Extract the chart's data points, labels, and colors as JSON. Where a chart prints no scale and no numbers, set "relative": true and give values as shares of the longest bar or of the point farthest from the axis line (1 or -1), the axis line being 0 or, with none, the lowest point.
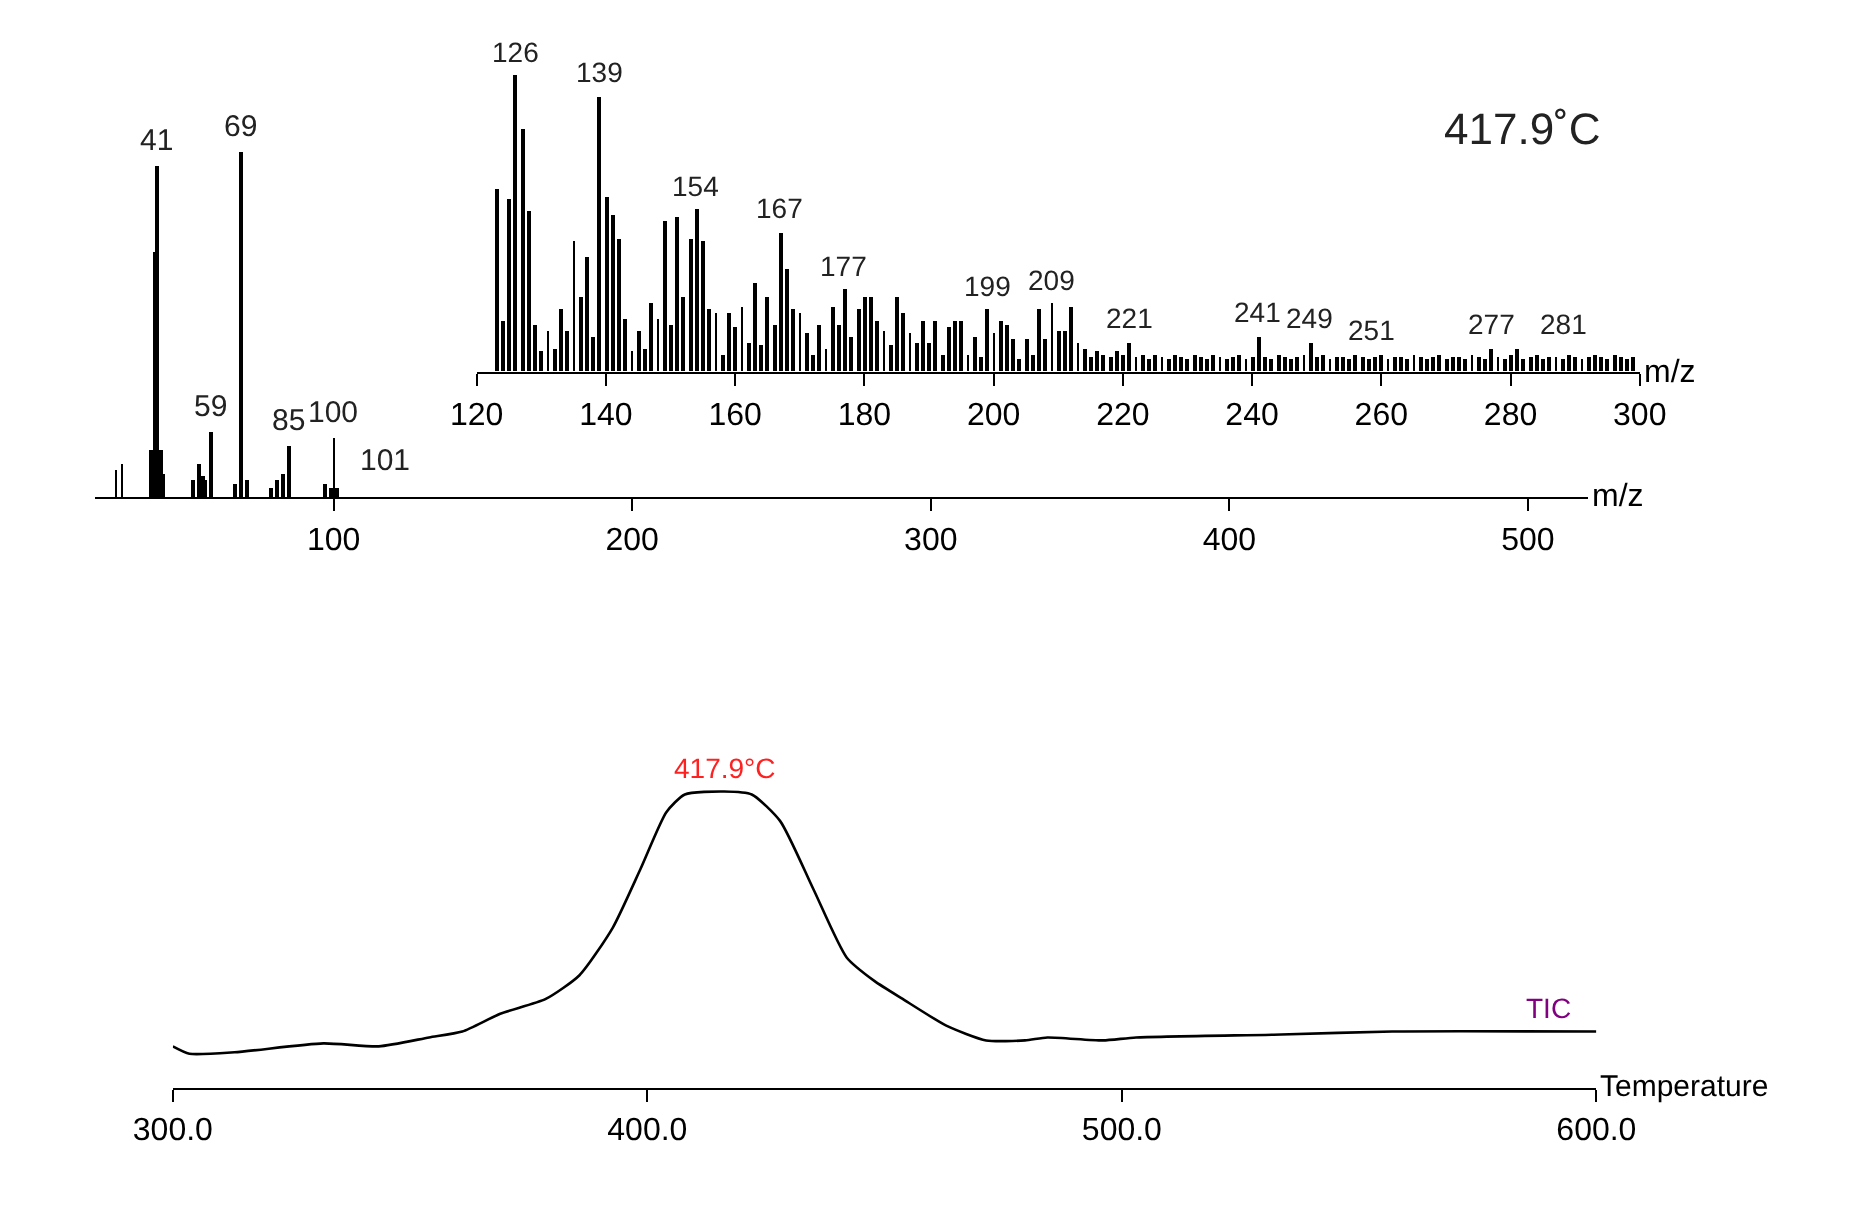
{
  "chart_data": [
    {
      "type": "bar",
      "relative": true,
      "xlabel": "m/z",
      "xlim": [
        20,
        520
      ],
      "xticks": [
        100,
        200,
        300,
        400,
        500
      ],
      "tick_labels": "x",
      "annotations": [
        {
          "text": "41",
          "x": 41,
          "y": 0.96
        },
        {
          "text": "59",
          "x": 59,
          "y": 0.19
        },
        {
          "text": "69",
          "x": 69,
          "y": 1
        },
        {
          "text": "85",
          "x": 85,
          "y": 0.15
        },
        {
          "text": "100",
          "x": 100,
          "y": 0.17
        },
        {
          "text": "101",
          "x": 101,
          "y": 0.03
        }
      ],
      "x": [
        27,
        29,
        39,
        40,
        41,
        42,
        43,
        53,
        55,
        56,
        57,
        59,
        67,
        69,
        71,
        79,
        81,
        83,
        85,
        97,
        99,
        100,
        101
      ],
      "series": [
        {
          "color": "#000000",
          "values": [
            0.08,
            0.1,
            0.14,
            0.71,
            0.96,
            0.14,
            0.07,
            0.05,
            0.1,
            0.06,
            0.05,
            0.19,
            0.04,
            1,
            0.05,
            0.03,
            0.05,
            0.07,
            0.15,
            0.04,
            0.03,
            0.17,
            0.03
          ]
        }
      ]
    },
    {
      "type": "bar",
      "relative": true,
      "xlabel": "m/z",
      "xlim": [
        120,
        300
      ],
      "xticks": [
        120,
        140,
        160,
        180,
        200,
        220,
        240,
        260,
        280,
        300
      ],
      "tick_labels": "x",
      "annotations": [
        "417.9˚C",
        {
          "text": "126",
          "x": 126,
          "y": 1.0
        },
        {
          "text": "139",
          "x": 139,
          "y": 0.93
        },
        {
          "text": "154",
          "x": 154,
          "y": 0.55
        },
        {
          "text": "167",
          "x": 167,
          "y": 0.47
        },
        {
          "text": "177",
          "x": 177,
          "y": 0.28
        },
        {
          "text": "199",
          "x": 199,
          "y": 0.21
        },
        {
          "text": "209",
          "x": 209,
          "y": 0.23
        },
        {
          "text": "221",
          "x": 221,
          "y": 0.1
        },
        {
          "text": "241",
          "x": 241,
          "y": 0.12
        },
        {
          "text": "249",
          "x": 249,
          "y": 0.1
        },
        {
          "text": "251",
          "x": 251,
          "y": 0.06
        },
        {
          "text": "277",
          "x": 277,
          "y": 0.08
        },
        {
          "text": "281",
          "x": 281,
          "y": 0.08
        }
      ],
      "x": [
        123,
        124,
        125,
        126,
        127,
        128,
        129,
        130,
        131,
        132,
        133,
        134,
        135,
        136,
        137,
        138,
        139,
        140,
        141,
        142,
        143,
        144,
        145,
        146,
        147,
        148,
        149,
        150,
        151,
        152,
        153,
        154,
        155,
        156,
        157,
        158,
        159,
        160,
        161,
        162,
        163,
        164,
        165,
        166,
        167,
        168,
        169,
        170,
        171,
        172,
        173,
        174,
        175,
        176,
        177,
        178,
        179,
        180,
        181,
        182,
        183,
        184,
        185,
        186,
        187,
        188,
        189,
        190,
        191,
        192,
        193,
        194,
        195,
        196,
        197,
        198,
        199,
        200,
        201,
        202,
        203,
        204,
        205,
        206,
        207,
        208,
        209,
        210,
        211,
        212,
        213,
        214,
        215,
        216,
        217,
        218,
        219,
        220,
        221,
        222,
        223,
        224,
        225,
        226,
        227,
        228,
        229,
        230,
        231,
        232,
        233,
        234,
        235,
        236,
        237,
        238,
        239,
        240,
        241,
        242,
        243,
        244,
        245,
        246,
        247,
        248,
        249,
        250,
        251,
        252,
        253,
        254,
        255,
        256,
        257,
        258,
        259,
        260,
        261,
        262,
        263,
        264,
        265,
        266,
        267,
        268,
        269,
        270,
        271,
        272,
        273,
        274,
        275,
        276,
        277,
        278,
        279,
        280,
        281,
        282,
        283,
        284,
        285,
        286,
        287,
        288,
        289,
        290,
        291,
        292,
        293,
        294,
        295,
        296,
        297,
        298,
        299
      ],
      "series": [
        {
          "color": "#000000",
          "values": [
            0.62,
            0.17,
            0.58,
            1.0,
            0.82,
            0.54,
            0.16,
            0.07,
            0.14,
            0.08,
            0.21,
            0.14,
            0.44,
            0.25,
            0.39,
            0.12,
            0.93,
            0.59,
            0.53,
            0.45,
            0.18,
            0.07,
            0.14,
            0.08,
            0.23,
            0.18,
            0.51,
            0.16,
            0.52,
            0.25,
            0.45,
            0.55,
            0.44,
            0.21,
            0.2,
            0.06,
            0.2,
            0.15,
            0.22,
            0.1,
            0.3,
            0.09,
            0.25,
            0.16,
            0.47,
            0.35,
            0.21,
            0.2,
            0.13,
            0.06,
            0.16,
            0.08,
            0.22,
            0.16,
            0.28,
            0.12,
            0.21,
            0.25,
            0.25,
            0.17,
            0.14,
            0.09,
            0.25,
            0.2,
            0.13,
            0.1,
            0.17,
            0.1,
            0.17,
            0.06,
            0.15,
            0.17,
            0.17,
            0.06,
            0.12,
            0.05,
            0.21,
            0.13,
            0.17,
            0.16,
            0.11,
            0.04,
            0.11,
            0.06,
            0.21,
            0.11,
            0.23,
            0.14,
            0.14,
            0.22,
            0.1,
            0.08,
            0.05,
            0.07,
            0.06,
            0.05,
            0.07,
            0.06,
            0.1,
            0.05,
            0.06,
            0.04,
            0.06,
            0.05,
            0.04,
            0.06,
            0.05,
            0.04,
            0.06,
            0.05,
            0.04,
            0.06,
            0.05,
            0.04,
            0.05,
            0.06,
            0.04,
            0.05,
            0.12,
            0.05,
            0.04,
            0.06,
            0.05,
            0.04,
            0.05,
            0.06,
            0.1,
            0.05,
            0.06,
            0.04,
            0.05,
            0.05,
            0.04,
            0.06,
            0.05,
            0.04,
            0.05,
            0.06,
            0.04,
            0.05,
            0.05,
            0.04,
            0.06,
            0.05,
            0.04,
            0.05,
            0.06,
            0.04,
            0.05,
            0.05,
            0.04,
            0.06,
            0.05,
            0.04,
            0.08,
            0.05,
            0.04,
            0.06,
            0.08,
            0.04,
            0.05,
            0.06,
            0.04,
            0.05,
            0.05,
            0.04,
            0.06,
            0.05,
            0.04,
            0.05,
            0.06,
            0.05,
            0.04,
            0.06,
            0.05,
            0.04,
            0.05
          ]
        }
      ]
    },
    {
      "type": "line",
      "relative": true,
      "xlabel": "Temperature",
      "xlim": [
        300,
        600
      ],
      "xticks": [
        {
          "value": 300,
          "label": "300.0"
        },
        {
          "value": 400,
          "label": "400.0"
        },
        {
          "value": 500,
          "label": "500.0"
        },
        {
          "value": 600,
          "label": "600.0"
        }
      ],
      "tick_labels": "x",
      "marker": "none",
      "annotations": [
        {
          "text": "417.9°C",
          "x": 416.2,
          "y": 1.0
        },
        {
          "text": "TIC",
          "x": 590,
          "y": 0.19
        }
      ],
      "x": [
        300,
        303.5,
        313,
        331.7,
        343.4,
        354,
        361,
        369,
        378.6,
        385.7,
        392.7,
        398.6,
        404,
        407.9,
        416.2,
        422,
        428,
        435,
        442,
        447.9,
        453.8,
        463,
        471.4,
        479.6,
        484.3,
        496,
        503,
        533.6,
        557,
        600
      ],
      "series": [
        {
          "color": "#000000",
          "values": [
            0.14,
            0.115,
            0.12,
            0.15,
            0.14,
            0.17,
            0.19,
            0.25,
            0.3,
            0.38,
            0.54,
            0.74,
            0.93,
            0.99,
            1.0,
            0.99,
            0.9,
            0.67,
            0.44,
            0.36,
            0.3,
            0.21,
            0.16,
            0.16,
            0.17,
            0.16,
            0.17,
            0.18,
            0.19,
            0.19
          ]
        }
      ]
    }
  ]
}
